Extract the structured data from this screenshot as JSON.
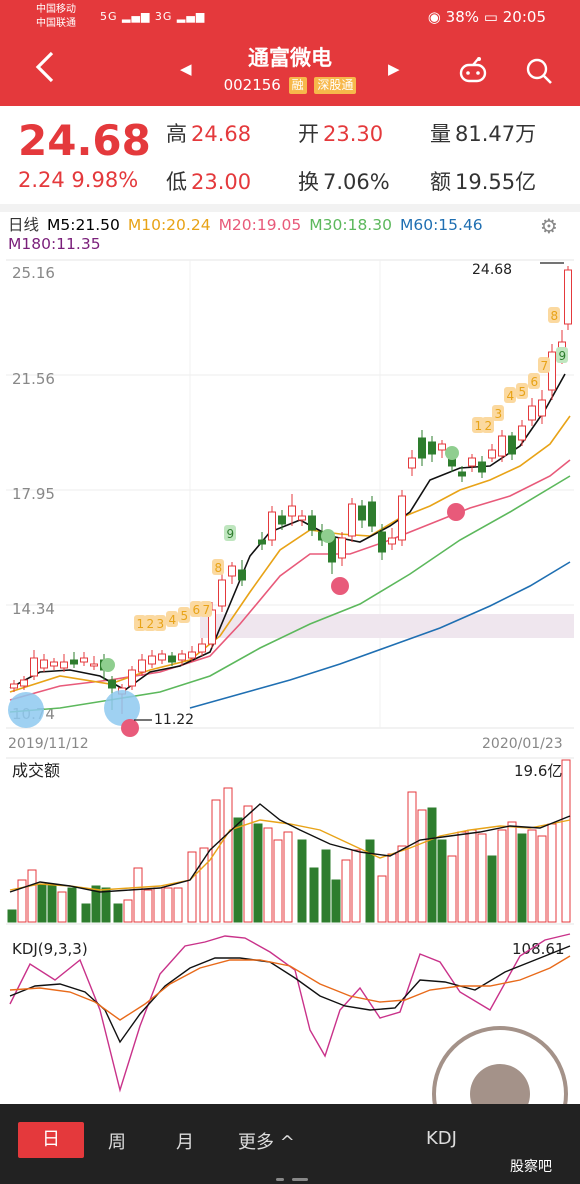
{
  "status": {
    "carrier1": "中国移动",
    "carrier2": "中国联通",
    "signal_text": "5G ▂▄▆ 3G ▂▄▆",
    "battery": "38%",
    "time": "20:05"
  },
  "header": {
    "title": "通富微电",
    "code": "002156",
    "badge_margin": "融",
    "badge_connect": "深股通"
  },
  "quote": {
    "price": "24.68",
    "change": "2.24  9.98%",
    "high_label": "高",
    "high": "24.68",
    "open_label": "开",
    "open": "23.30",
    "volume_label": "量",
    "volume": "81.47万",
    "low_label": "低",
    "low": "23.00",
    "turnover_label": "换",
    "turnover": "7.06%",
    "amount_label": "额",
    "amount": "19.55亿"
  },
  "ma": {
    "period": "日线",
    "m5": "M5:21.50",
    "m10": "M10:20.24",
    "m20": "M20:19.05",
    "m30": "M30:18.30",
    "m60": "M60:15.46",
    "m180": "M180:11.35"
  },
  "colors": {
    "up": "#e4393c",
    "down": "#2e7d2e",
    "m5": "#000000",
    "m10": "#e8a317",
    "m20": "#e85a7a",
    "m30": "#5cb85c",
    "m60": "#1f6fb2",
    "m180": "#7a1f7a"
  },
  "kline": {
    "y_labels": [
      "25.16",
      "21.56",
      "17.95",
      "14.34",
      "10.74"
    ],
    "high_mark": "24.68",
    "low_mark": "11.22",
    "date_start": "2019/11/12",
    "date_end": "2020/01/23"
  },
  "volume": {
    "label": "成交额",
    "max": "19.6亿"
  },
  "kdj": {
    "label": "KDJ(9,3,3)",
    "max": "108.61"
  },
  "tabs": {
    "day": "日",
    "week": "周",
    "month": "月",
    "more": "更多 ^",
    "right": "KDJ"
  },
  "watermark": "股察吧"
}
